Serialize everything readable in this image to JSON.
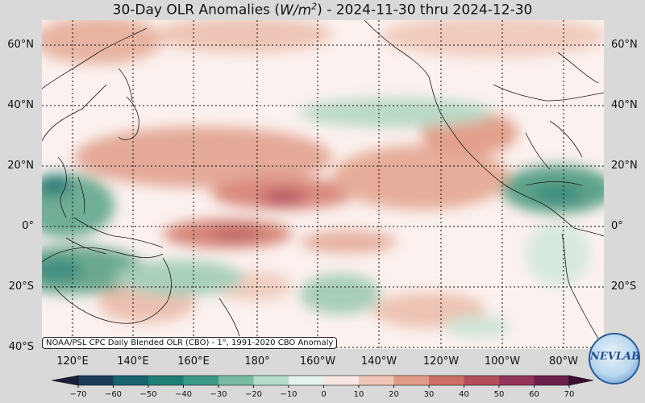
{
  "title_prefix": "30-Day OLR Anomalies (",
  "title_unit_base": "W/m",
  "title_unit_exp": "2",
  "title_suffix": ") - 2024-11-30 thru 2024-12-30",
  "lat_labels": [
    "60°N",
    "40°N",
    "20°N",
    "0°",
    "20°S",
    "40°S"
  ],
  "lon_labels": [
    "120°E",
    "140°E",
    "160°E",
    "180°",
    "160°W",
    "140°W",
    "120°W",
    "100°W",
    "80°W"
  ],
  "credit": "NOAA/PSL CPC Daily Blended OLR (CBO) - 1°, 1991-2020 CBO Anomaly",
  "colorbar": {
    "ticks": [
      "−70",
      "−60",
      "−50",
      "−40",
      "−30",
      "−20",
      "−10",
      "0",
      "10",
      "20",
      "30",
      "40",
      "50",
      "60",
      "70"
    ],
    "colors_negative": [
      "#1b1f3a",
      "#1e3a5a",
      "#16636b",
      "#1f7f75",
      "#3c9a86",
      "#79bba3",
      "#b7dcc9",
      "#e6f2ec"
    ],
    "colors_positive": [
      "#f6e7e2",
      "#eec5b6",
      "#df9c87",
      "#c96f63",
      "#b14e5a",
      "#93345a",
      "#6b1f4d",
      "#3e0d32"
    ]
  },
  "logo_text": "NEVLAB"
}
